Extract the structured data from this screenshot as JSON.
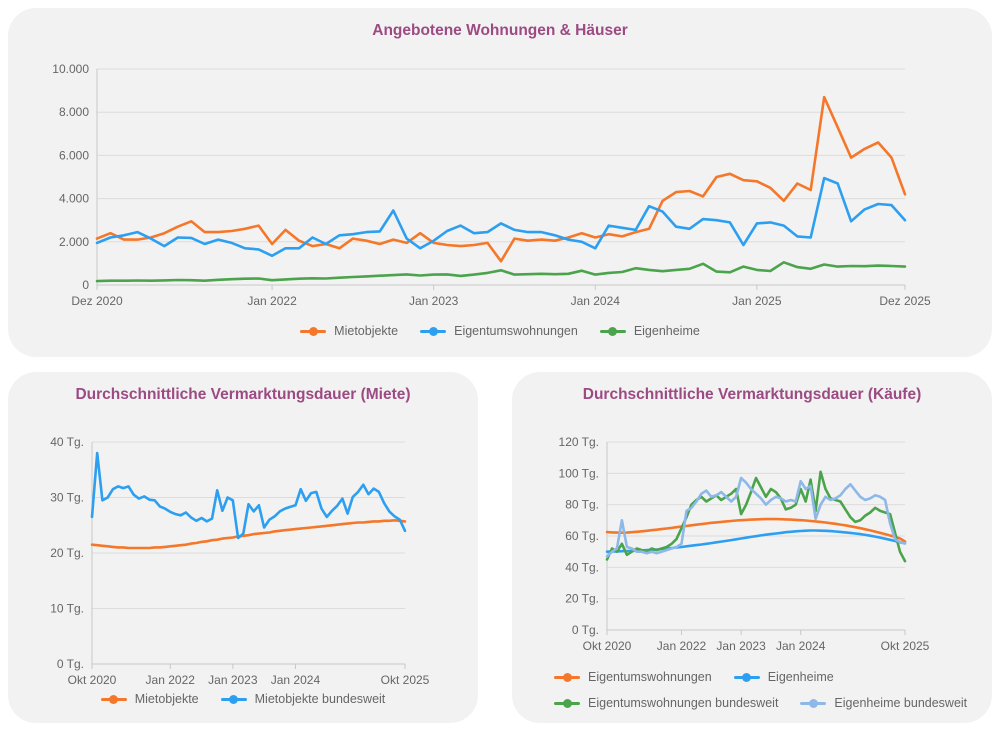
{
  "colors": {
    "title": "#9c4b82",
    "axis_text": "#666666",
    "gridline": "#dcdcdc",
    "axis_line": "#c8c8c8",
    "card_background": "#f2f2f2",
    "page_background": "#ffffff",
    "orange": "#f4772a",
    "blue": "#2d9ff0",
    "green": "#4ba44b",
    "light_blue": "#8db8e8"
  },
  "chart_data": [
    {
      "type": "line",
      "title": "Angebotene Wohnungen & Häuser",
      "x_range": [
        "Dez 2020",
        "Dez 2025"
      ],
      "n_points": 61,
      "grid": true,
      "legend_position": "bottom-center",
      "y_axis": {
        "min": 0,
        "max": 10000,
        "step": 2000,
        "labels": [
          "0",
          "2.000",
          "4.000",
          "6.000",
          "8.000",
          "10.000"
        ]
      },
      "x_ticks": [
        {
          "at": 0,
          "label": "Dez 2020"
        },
        {
          "at": 13,
          "label": "Jan 2022"
        },
        {
          "at": 25,
          "label": "Jan 2023"
        },
        {
          "at": 37,
          "label": "Jan 2024"
        },
        {
          "at": 49,
          "label": "Jan 2025"
        },
        {
          "at": 60,
          "label": "Dez 2025"
        }
      ],
      "legend_rows": [
        [
          0,
          1,
          2
        ]
      ],
      "series": [
        {
          "name": "Mietobjekte",
          "color": "#f4772a",
          "values": [
            2150,
            2400,
            2100,
            2100,
            2200,
            2400,
            2700,
            2950,
            2450,
            2450,
            2500,
            2600,
            2750,
            1900,
            2550,
            2050,
            1800,
            1900,
            1700,
            2150,
            2050,
            1900,
            2100,
            1950,
            2400,
            1950,
            1850,
            1800,
            1850,
            1950,
            1100,
            2150,
            2050,
            2100,
            2050,
            2200,
            2400,
            2200,
            2350,
            2250,
            2450,
            2600,
            3900,
            4300,
            4350,
            4100,
            5000,
            5150,
            4850,
            4800,
            4500,
            3900,
            4700,
            4400,
            8700,
            7300,
            5900,
            6300,
            6600,
            5900,
            4200
          ]
        },
        {
          "name": "Eigentumswohnungen",
          "color": "#2d9ff0",
          "values": [
            1950,
            2200,
            2300,
            2450,
            2150,
            1800,
            2200,
            2180,
            1900,
            2100,
            1950,
            1700,
            1650,
            1350,
            1700,
            1700,
            2200,
            1900,
            2300,
            2350,
            2450,
            2480,
            3450,
            2150,
            1700,
            2050,
            2500,
            2750,
            2400,
            2450,
            2850,
            2550,
            2450,
            2450,
            2300,
            2100,
            2000,
            1700,
            2750,
            2650,
            2550,
            3650,
            3400,
            2700,
            2600,
            3050,
            3000,
            2900,
            1850,
            2850,
            2900,
            2750,
            2250,
            2200,
            4950,
            4700,
            2950,
            3500,
            3750,
            3700,
            3000
          ]
        },
        {
          "name": "Eigenheime",
          "color": "#4ba44b",
          "values": [
            180,
            200,
            200,
            210,
            200,
            215,
            230,
            220,
            200,
            240,
            270,
            290,
            300,
            220,
            260,
            290,
            310,
            300,
            340,
            370,
            400,
            430,
            460,
            490,
            440,
            480,
            490,
            420,
            480,
            560,
            680,
            480,
            500,
            520,
            500,
            520,
            660,
            480,
            560,
            600,
            780,
            700,
            640,
            700,
            750,
            980,
            620,
            590,
            850,
            700,
            650,
            1050,
            830,
            750,
            950,
            850,
            880,
            870,
            900,
            880,
            850
          ]
        }
      ]
    },
    {
      "type": "line",
      "title": "Durchschnittliche Vermarktungsdauer (Miete)",
      "x_range": [
        "Okt 2020",
        "Okt 2025"
      ],
      "n_points": 61,
      "grid": true,
      "unit": "Tg.",
      "legend_position": "bottom-center",
      "y_axis": {
        "min": 0,
        "max": 40,
        "step": 10,
        "labels": [
          "0 Tg.",
          "10 Tg.",
          "20 Tg.",
          "30 Tg.",
          "40 Tg."
        ]
      },
      "x_ticks": [
        {
          "at": 0,
          "label": "Okt 2020"
        },
        {
          "at": 15,
          "label": "Jan 2022"
        },
        {
          "at": 27,
          "label": "Jan 2023"
        },
        {
          "at": 39,
          "label": "Jan 2024"
        },
        {
          "at": 60,
          "label": "Okt 2025"
        }
      ],
      "legend_rows": [
        [
          0,
          1
        ]
      ],
      "series": [
        {
          "name": "Mietobjekte",
          "color": "#f4772a",
          "values": [
            21.5,
            21.4,
            21.3,
            21.2,
            21.1,
            21.0,
            21.0,
            20.9,
            20.9,
            20.9,
            20.9,
            20.9,
            21.0,
            21.0,
            21.1,
            21.2,
            21.3,
            21.4,
            21.5,
            21.7,
            21.8,
            22.0,
            22.1,
            22.3,
            22.4,
            22.6,
            22.7,
            22.8,
            23.0,
            23.1,
            23.2,
            23.4,
            23.5,
            23.6,
            23.7,
            23.9,
            24.0,
            24.1,
            24.2,
            24.3,
            24.4,
            24.5,
            24.6,
            24.7,
            24.8,
            24.9,
            25.0,
            25.1,
            25.2,
            25.3,
            25.4,
            25.5,
            25.5,
            25.6,
            25.7,
            25.7,
            25.8,
            25.8,
            25.9,
            25.8,
            25.7
          ]
        },
        {
          "name": "Mietobjekte bundesweit",
          "color": "#2d9ff0",
          "values": [
            26.5,
            38,
            29.5,
            30,
            31.5,
            32,
            31.7,
            32,
            30.5,
            29.8,
            30.2,
            29.6,
            29.5,
            28.4,
            28,
            27.4,
            27,
            26.8,
            27.3,
            26.4,
            25.8,
            26.3,
            25.7,
            26.2,
            31.3,
            27.6,
            30,
            29.5,
            22.7,
            23.5,
            28.8,
            27.5,
            28.6,
            24.6,
            26,
            26.6,
            27.5,
            28,
            28.3,
            28.6,
            31.5,
            29.4,
            30.8,
            31,
            28,
            26.5,
            27.6,
            28.5,
            29.8,
            27.1,
            30.1,
            31,
            32.3,
            30.6,
            31.6,
            31,
            29,
            27.5,
            26.6,
            26,
            24
          ]
        }
      ]
    },
    {
      "type": "line",
      "title": "Durchschnittliche Vermarktungsdauer (Käufe)",
      "x_range": [
        "Okt 2020",
        "Okt 2025"
      ],
      "n_points": 61,
      "grid": true,
      "unit": "Tg.",
      "legend_position": "bottom-left-two-rows",
      "y_axis": {
        "min": 0,
        "max": 120,
        "step": 20,
        "labels": [
          "0 Tg.",
          "20 Tg.",
          "40 Tg.",
          "60 Tg.",
          "80 Tg.",
          "100 Tg.",
          "120 Tg."
        ]
      },
      "x_ticks": [
        {
          "at": 0,
          "label": "Okt 2020"
        },
        {
          "at": 15,
          "label": "Jan 2022"
        },
        {
          "at": 27,
          "label": "Jan 2023"
        },
        {
          "at": 39,
          "label": "Jan 2024"
        },
        {
          "at": 60,
          "label": "Okt 2025"
        }
      ],
      "legend_rows": [
        [
          0,
          1
        ],
        [
          2,
          3
        ]
      ],
      "series": [
        {
          "name": "Eigentumswohnungen",
          "color": "#f4772a",
          "values": [
            62.5,
            62.3,
            62.2,
            62.1,
            62.2,
            62.4,
            62.7,
            63.0,
            63.3,
            63.7,
            64.0,
            64.4,
            64.8,
            65.2,
            65.6,
            66.0,
            66.4,
            66.8,
            67.2,
            67.6,
            68.0,
            68.4,
            68.7,
            69.0,
            69.3,
            69.6,
            69.9,
            70.1,
            70.3,
            70.5,
            70.6,
            70.7,
            70.8,
            70.8,
            70.8,
            70.7,
            70.6,
            70.5,
            70.3,
            70.1,
            69.9,
            69.6,
            69.3,
            69.0,
            68.6,
            68.2,
            67.8,
            67.3,
            66.8,
            66.2,
            65.6,
            65.0,
            64.3,
            63.6,
            62.8,
            62.0,
            61.2,
            60.3,
            59.4,
            58.4,
            56.5
          ]
        },
        {
          "name": "Eigenheime",
          "color": "#2d9ff0",
          "values": [
            50.0,
            50.1,
            50.2,
            50.3,
            50.4,
            50.5,
            50.6,
            50.8,
            51.0,
            51.2,
            51.4,
            51.7,
            52.0,
            52.3,
            52.7,
            53.0,
            53.4,
            53.8,
            54.2,
            54.6,
            55.0,
            55.5,
            56.0,
            56.4,
            56.9,
            57.4,
            57.9,
            58.4,
            58.9,
            59.4,
            59.9,
            60.4,
            60.8,
            61.2,
            61.6,
            62.0,
            62.4,
            62.7,
            63.0,
            63.2,
            63.4,
            63.5,
            63.5,
            63.4,
            63.3,
            63.1,
            62.9,
            62.6,
            62.3,
            62.0,
            61.6,
            61.2,
            60.7,
            60.2,
            59.6,
            59.0,
            58.3,
            57.6,
            56.8,
            56.0,
            55.3
          ]
        },
        {
          "name": "Eigentumswohnungen bundesweit",
          "color": "#4ba44b",
          "values": [
            45,
            52,
            50,
            55,
            48,
            50,
            52,
            51,
            50,
            52,
            51,
            52,
            53,
            55,
            58,
            65,
            72,
            80,
            83,
            85,
            82,
            84,
            86,
            83,
            85,
            87,
            90,
            74,
            80,
            88,
            97,
            91,
            85,
            90,
            88,
            84,
            77,
            78,
            80,
            90,
            82,
            96,
            76,
            101,
            90,
            84,
            83,
            82,
            77,
            72,
            69,
            70,
            73,
            75,
            78,
            76,
            75,
            74,
            62,
            50,
            44
          ]
        },
        {
          "name": "Eigenheime bundesweit",
          "color": "#8db8e8",
          "values": [
            47,
            50,
            52,
            70,
            53,
            52,
            50,
            50,
            49,
            50,
            49,
            50,
            51,
            52,
            53,
            55,
            76,
            78,
            82,
            87,
            89,
            85,
            86,
            88,
            85,
            82,
            85,
            97,
            94,
            90,
            87,
            84,
            80,
            83,
            85,
            84,
            82,
            83,
            82,
            95,
            90,
            92,
            71,
            80,
            85,
            83,
            84,
            86,
            90,
            93,
            89,
            85,
            83,
            84,
            86,
            85,
            83,
            68,
            58,
            56,
            55.5
          ]
        }
      ]
    }
  ]
}
